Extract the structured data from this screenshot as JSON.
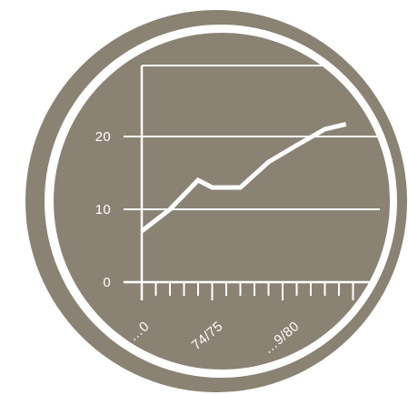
{
  "colors": {
    "badge_fill": "#8a8374",
    "ring": "#ffffff",
    "grid": "#ffffff",
    "line": "#ffffff",
    "background": "#ffffff"
  },
  "chart_data": {
    "type": "line",
    "title": "",
    "xlabel": "",
    "ylabel": "",
    "grid": true,
    "legend": "none",
    "ylim": [
      0,
      30
    ],
    "y_ticks": [
      0,
      10,
      20
    ],
    "y_tick_labels": [
      "0",
      "10",
      "20"
    ],
    "x_tick_labels": [
      "…0",
      "74/75",
      "…9/80"
    ],
    "x_tick_count": 15,
    "series": [
      {
        "points": [
          {
            "x": 0,
            "y": 7
          },
          {
            "x": 2,
            "y": 10
          },
          {
            "x": 4,
            "y": 14
          },
          {
            "x": 5,
            "y": 13
          },
          {
            "x": 7,
            "y": 13
          },
          {
            "x": 9,
            "y": 16.5
          },
          {
            "x": 11,
            "y": 18.8
          },
          {
            "x": 13,
            "y": 21
          },
          {
            "x": 14.5,
            "y": 21.7
          }
        ]
      }
    ]
  }
}
